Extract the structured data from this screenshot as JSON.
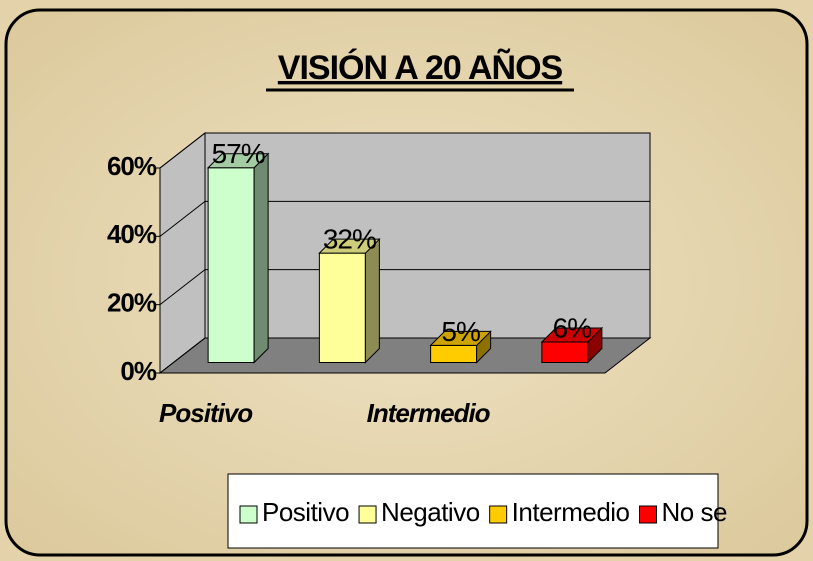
{
  "chart_data": {
    "type": "bar3d",
    "title": "VISIÓN A 20 AÑOS",
    "categories": [
      "Positivo",
      null,
      "Intermedio",
      null
    ],
    "values": [
      57,
      32,
      5,
      6
    ],
    "value_labels": [
      "57%",
      "32%",
      "5%",
      "6%"
    ],
    "colors": [
      "#ccffcc",
      "#ffff99",
      "#ffcc00",
      "#ff0000"
    ],
    "legend": [
      "Positivo",
      "Negativo",
      "Intermedio",
      "No se"
    ],
    "ylim": [
      0,
      60
    ],
    "yticks": [
      {
        "value": 0,
        "label": "0%"
      },
      {
        "value": 20,
        "label": "20%"
      },
      {
        "value": 40,
        "label": "40%"
      },
      {
        "value": 60,
        "label": "60%"
      }
    ],
    "grid": true
  }
}
